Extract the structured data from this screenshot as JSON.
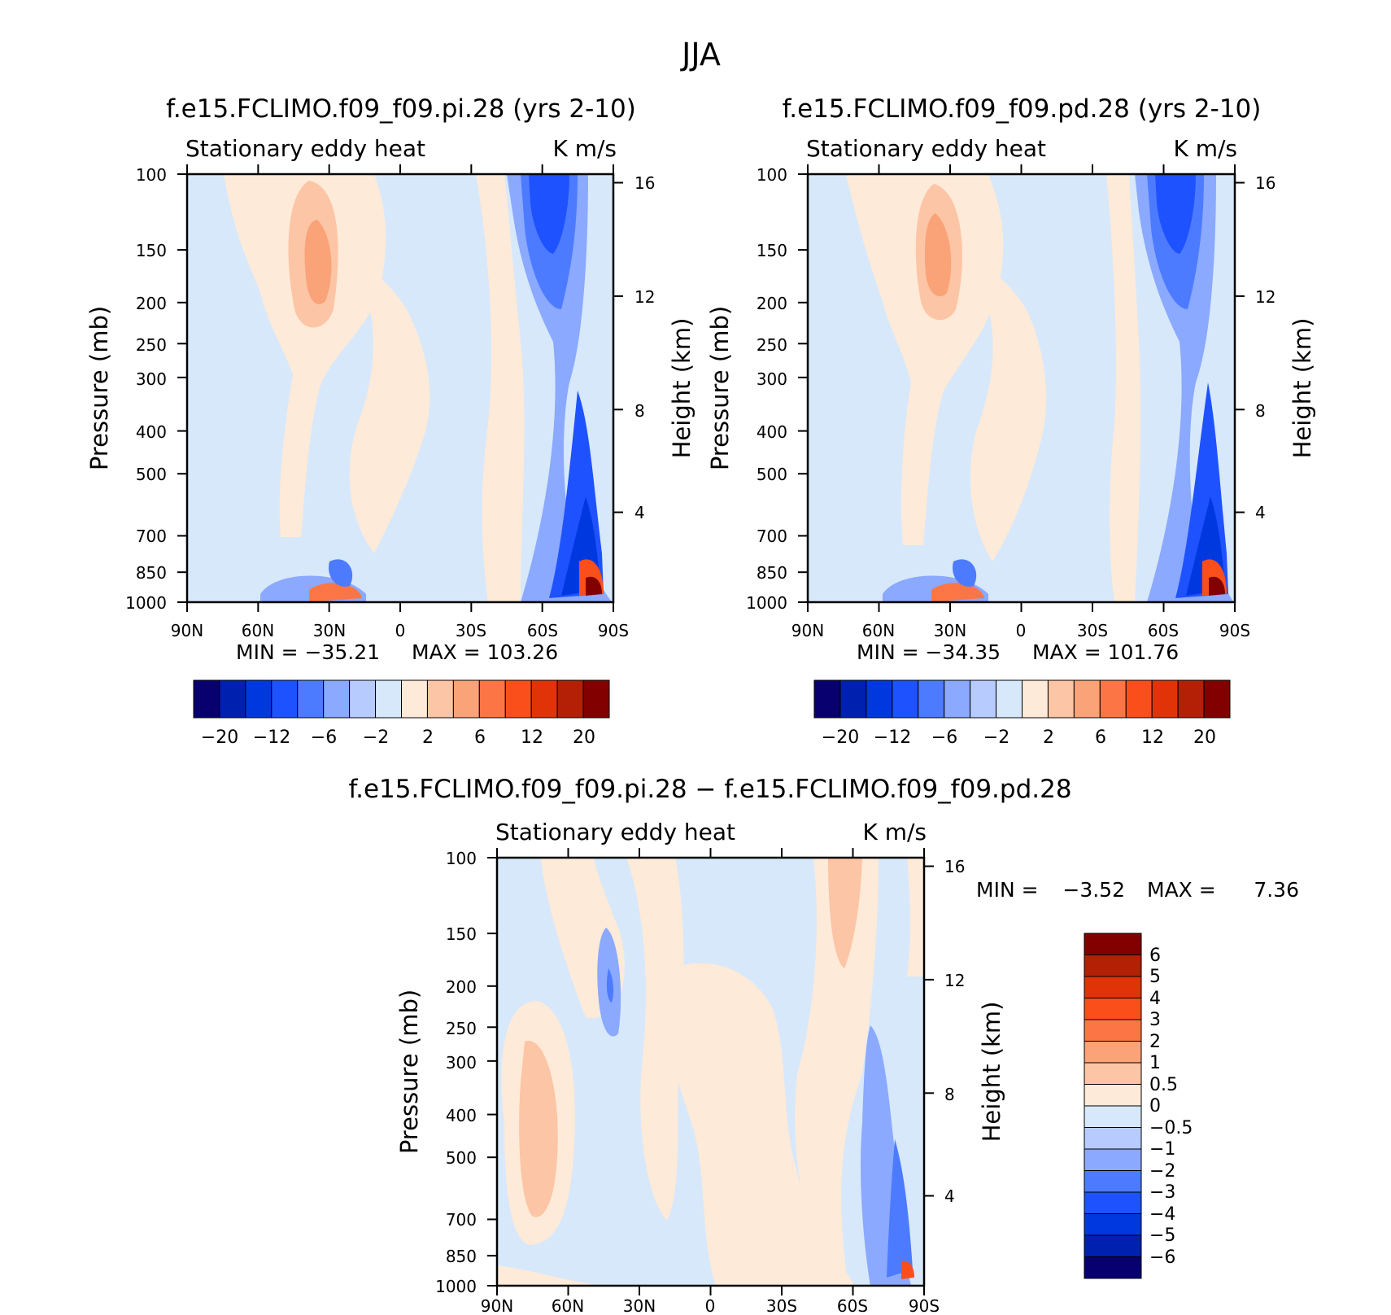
{
  "chart_data": [
    {
      "type": "heatmap",
      "title": "f.e15.FCLIMO.f09_f09.pi.28 (yrs 2-10)",
      "subtitle_left": "Stationary eddy heat",
      "subtitle_right": "K m/s",
      "ylabel": "Pressure (mb)",
      "ylabel_right": "Height (km)",
      "x_ticks": [
        "90N",
        "60N",
        "30N",
        "0",
        "30S",
        "60S",
        "90S"
      ],
      "y_ticks": [
        "100",
        "150",
        "200",
        "250",
        "300",
        "400",
        "500",
        "700",
        "850",
        "1000"
      ],
      "y_right_ticks": [
        "16",
        "12",
        "8",
        "4"
      ],
      "min_label": "MIN = −35.21",
      "max_label": "MAX = 103.26",
      "min": -35.21,
      "max": 103.26,
      "colorbar_labels": [
        "−20",
        "−12",
        "−6",
        "−2",
        "2",
        "6",
        "12",
        "20"
      ]
    },
    {
      "type": "heatmap",
      "title": "f.e15.FCLIMO.f09_f09.pd.28 (yrs 2-10)",
      "subtitle_left": "Stationary eddy heat",
      "subtitle_right": "K m/s",
      "ylabel": "Pressure (mb)",
      "ylabel_right": "Height (km)",
      "x_ticks": [
        "90N",
        "60N",
        "30N",
        "0",
        "30S",
        "60S",
        "90S"
      ],
      "y_ticks": [
        "100",
        "150",
        "200",
        "250",
        "300",
        "400",
        "500",
        "700",
        "850",
        "1000"
      ],
      "y_right_ticks": [
        "16",
        "12",
        "8",
        "4"
      ],
      "min_label": "MIN = −34.35",
      "max_label": "MAX = 101.76",
      "min": -34.35,
      "max": 101.76,
      "colorbar_labels": [
        "−20",
        "−12",
        "−6",
        "−2",
        "2",
        "6",
        "12",
        "20"
      ]
    },
    {
      "type": "heatmap",
      "title": "f.e15.FCLIMO.f09_f09.pi.28 − f.e15.FCLIMO.f09_f09.pd.28",
      "subtitle_left": "Stationary eddy heat",
      "subtitle_right": "K m/s",
      "ylabel": "Pressure (mb)",
      "ylabel_right": "Height (km)",
      "x_ticks": [
        "90N",
        "60N",
        "30N",
        "0",
        "30S",
        "60S",
        "90S"
      ],
      "y_ticks": [
        "100",
        "150",
        "200",
        "250",
        "300",
        "400",
        "500",
        "700",
        "850",
        "1000"
      ],
      "y_right_ticks": [
        "16",
        "12",
        "8",
        "4"
      ],
      "min_label": "MIN =",
      "min_value": "−3.52",
      "max_label": "MAX =",
      "max_value": "7.36",
      "min": -3.52,
      "max": 7.36,
      "colorbar_labels": [
        "6",
        "5",
        "4",
        "3",
        "2",
        "1",
        "0.5",
        "0",
        "−0.5",
        "−1",
        "−2",
        "−3",
        "−4",
        "−5",
        "−6"
      ]
    }
  ],
  "figure_title": "JJA",
  "palette": [
    "#08006e",
    "#0020b0",
    "#0038e0",
    "#1f52ff",
    "#4d7bff",
    "#8aa9ff",
    "#b7cbff",
    "#d7e8fb",
    "#feead8",
    "#fcc5a5",
    "#faa278",
    "#fb7644",
    "#fb4f1b",
    "#e03308",
    "#b32005",
    "#820000"
  ]
}
